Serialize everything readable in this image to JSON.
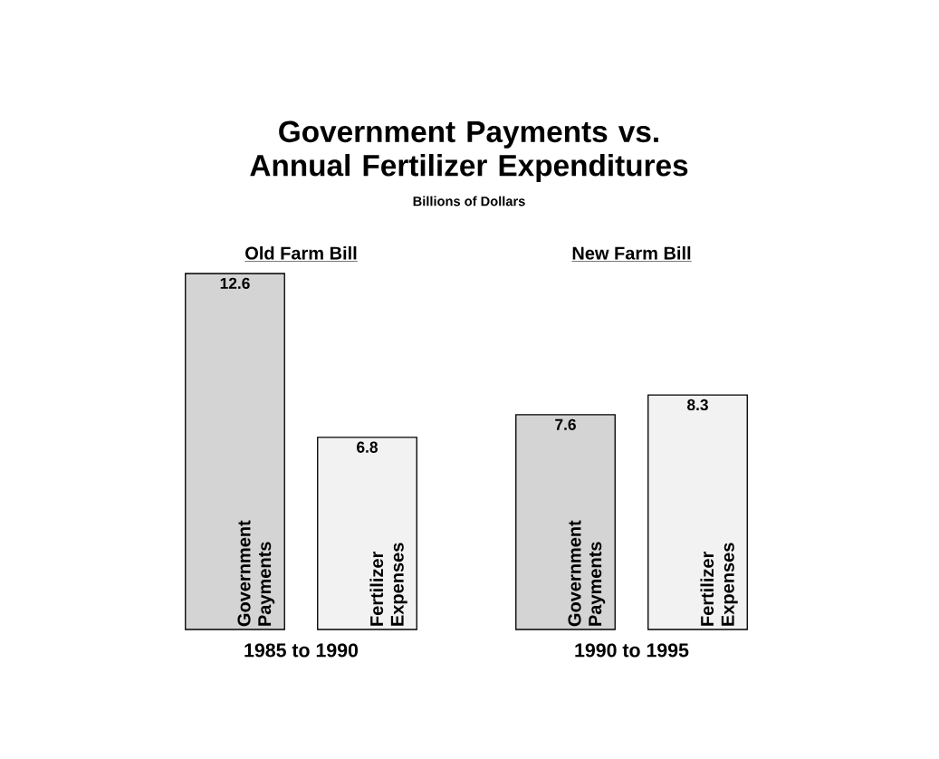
{
  "chart_data": {
    "type": "bar",
    "title": "Government Payments vs. Annual Fertilizer Expenditures",
    "subtitle": "Billions of Dollars",
    "categories": [
      "1985 to 1990",
      "1990 to 1995"
    ],
    "series": [
      {
        "name": "Government Payments",
        "color": "#d4d4d4",
        "values": [
          12.6,
          7.6
        ]
      },
      {
        "name": "Fertilizer Expenses",
        "color": "#f2f2f2",
        "values": [
          6.8,
          8.3
        ]
      }
    ],
    "annotations": [
      "Old Farm Bill",
      "New Farm Bill"
    ],
    "data_labels": true
  }
}
